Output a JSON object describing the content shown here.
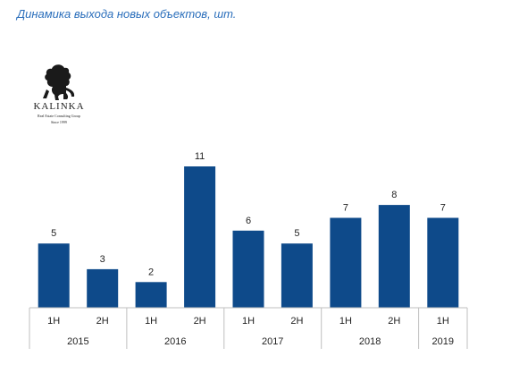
{
  "chart_data": {
    "type": "bar",
    "title": "Динамика выхода новых объектов, шт.",
    "xlabel": "",
    "ylabel": "",
    "categories": [
      "1H",
      "2H",
      "1H",
      "2H",
      "1H",
      "2H",
      "1H",
      "2H",
      "1H"
    ],
    "groups": [
      {
        "label": "2015",
        "count": 2
      },
      {
        "label": "2016",
        "count": 2
      },
      {
        "label": "2017",
        "count": 2
      },
      {
        "label": "2018",
        "count": 2
      },
      {
        "label": "2019",
        "count": 1
      }
    ],
    "values": [
      5,
      3,
      2,
      11,
      6,
      5,
      7,
      8,
      7
    ],
    "ylim": [
      0,
      11
    ],
    "grid": false,
    "bar_color": "#0e4a8a",
    "axis_color": "#bfbfbf"
  },
  "logo": {
    "name": "KALINKA",
    "subtitle": "Real Estate Consulting Group",
    "since": "Since 1999",
    "icon": "horse-icon"
  }
}
